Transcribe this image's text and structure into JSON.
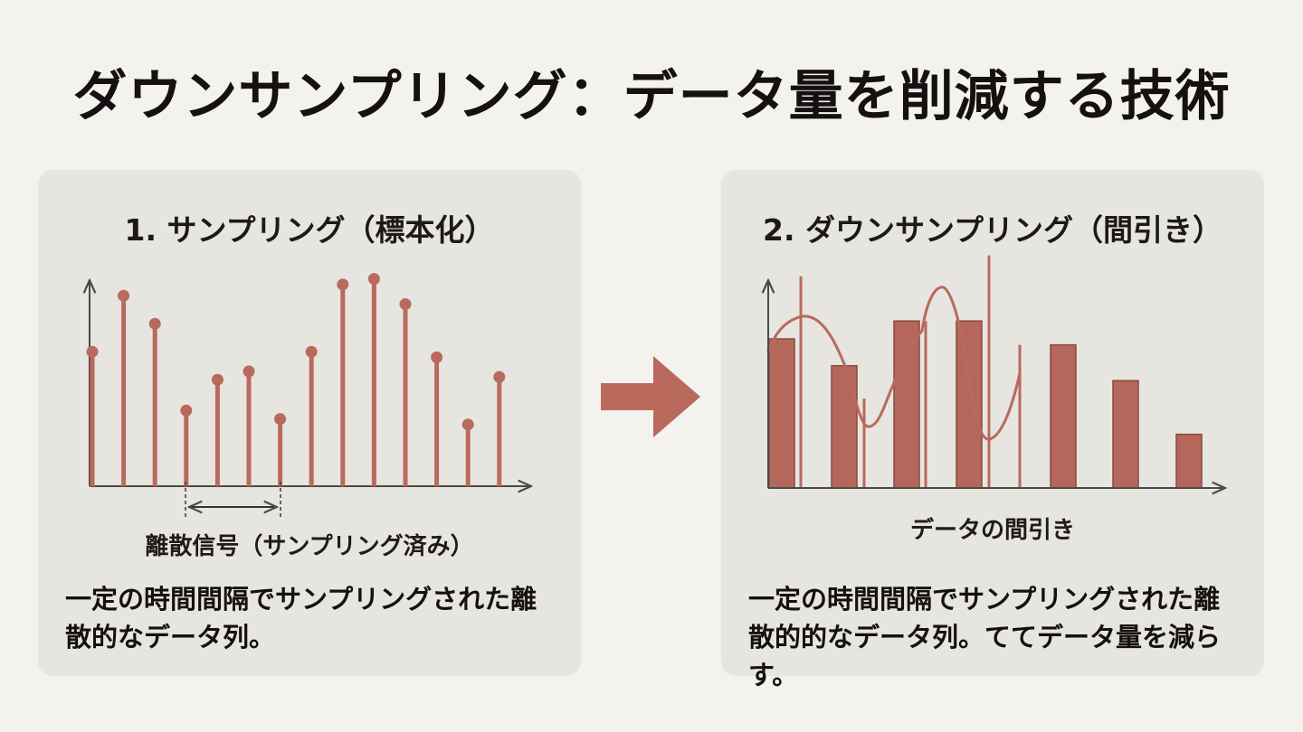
{
  "title": "ダウンサンプリング：データ量を削減する技術",
  "left_panel": {
    "heading": "1. サンプリング（標本化）",
    "caption": "離散信号（サンプリング済み）",
    "description": "一定の時間間隔でサンプリングされた離散的なデータ列。"
  },
  "right_panel": {
    "heading": "2. ダウンサンプリング（間引き）",
    "caption": "データの間引き",
    "description": "一定の時間間隔でサンプリングされた離散的的なデータ列。ててデータ量を減らす。"
  },
  "colors": {
    "accent": "#b86a5e",
    "bar_fill": "#b5675c",
    "bar_stroke": "#8a4a40",
    "arrow": "#b96a5d",
    "axis": "#4a4a4a",
    "panel_bg": "#e7e5df",
    "page_bg": "#f3f2ee"
  },
  "chart_data": [
    {
      "type": "stem",
      "values": [
        0.48,
        0.68,
        0.58,
        0.27,
        0.38,
        0.41,
        0.24,
        0.48,
        0.72,
        0.74,
        0.65,
        0.46,
        0.22,
        0.39
      ]
    },
    {
      "type": "bar",
      "values": [
        0.5,
        0.41,
        0.56,
        0.56,
        0.48,
        0.36,
        0.18
      ],
      "thin_lines": [
        0.71,
        0.3,
        0.56,
        0.78,
        0.48,
        0.18
      ]
    }
  ]
}
